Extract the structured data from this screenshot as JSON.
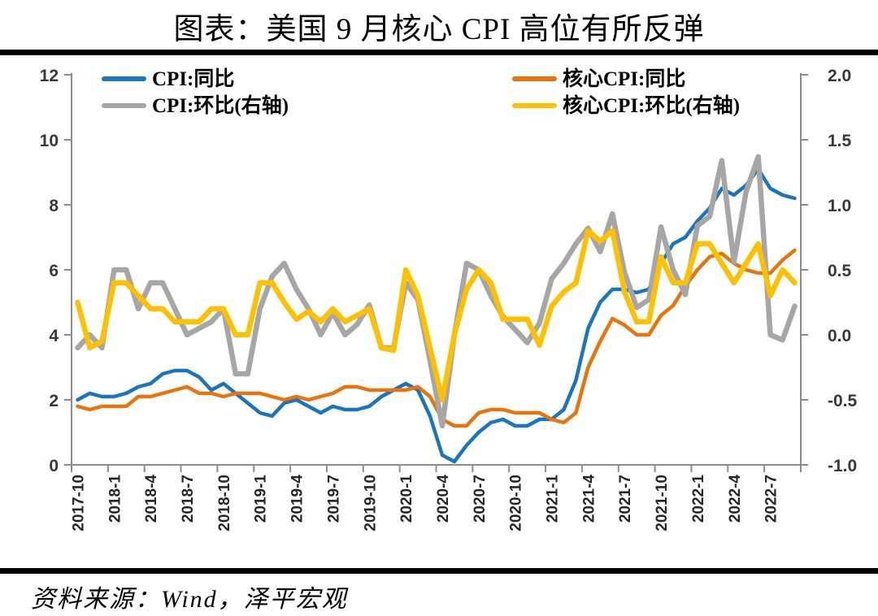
{
  "page": {
    "title": "图表：美国 9 月核心 CPI 高位有所反弹",
    "source_note": "资料来源：Wind，泽平宏观"
  },
  "legend": [
    {
      "label": "CPI:同比",
      "color": "#1B75BE"
    },
    {
      "label": "核心CPI:同比",
      "color": "#E8740D"
    },
    {
      "label": "CPI:环比(右轴)",
      "color": "#A6A6A6"
    },
    {
      "label": "核心CPI:环比(右轴)",
      "color": "#FFC000"
    }
  ],
  "chart_data": {
    "type": "line",
    "title": "图表：美国 9 月核心 CPI 高位有所反弹",
    "grid": false,
    "legend_position": "top",
    "x": [
      "2017-10",
      "2017-11",
      "2017-12",
      "2018-1",
      "2018-2",
      "2018-3",
      "2018-4",
      "2018-5",
      "2018-6",
      "2018-7",
      "2018-8",
      "2018-9",
      "2018-10",
      "2018-11",
      "2018-12",
      "2019-1",
      "2019-2",
      "2019-3",
      "2019-4",
      "2019-5",
      "2019-6",
      "2019-7",
      "2019-8",
      "2019-9",
      "2019-10",
      "2019-11",
      "2019-12",
      "2020-1",
      "2020-2",
      "2020-3",
      "2020-4",
      "2020-5",
      "2020-6",
      "2020-7",
      "2020-8",
      "2020-9",
      "2020-10",
      "2020-11",
      "2020-12",
      "2021-1",
      "2021-2",
      "2021-3",
      "2021-4",
      "2021-5",
      "2021-6",
      "2021-7",
      "2021-8",
      "2021-9",
      "2021-10",
      "2021-11",
      "2021-12",
      "2022-1",
      "2022-2",
      "2022-3",
      "2022-4",
      "2022-5",
      "2022-6",
      "2022-7",
      "2022-8",
      "2022-9"
    ],
    "x_tick_labels": [
      "2017-10",
      "2018-1",
      "2018-4",
      "2018-7",
      "2018-10",
      "2019-1",
      "2019-4",
      "2019-7",
      "2019-10",
      "2020-1",
      "2020-4",
      "2020-7",
      "2020-10",
      "2021-1",
      "2021-4",
      "2021-7",
      "2021-10",
      "2022-1",
      "2022-4",
      "2022-7"
    ],
    "left_axis": {
      "min": 0,
      "max": 12,
      "ticks": [
        0,
        2,
        4,
        6,
        8,
        10,
        12
      ]
    },
    "right_axis": {
      "min": -1,
      "max": 2,
      "ticks": [
        -1.0,
        -0.5,
        0.0,
        0.5,
        1.0,
        1.5,
        2.0
      ]
    },
    "series": [
      {
        "name": "CPI:同比",
        "slug": "cpi-yoy",
        "axis": "left",
        "color": "#1B75BE",
        "width": 4.5,
        "values": [
          2.0,
          2.2,
          2.1,
          2.1,
          2.2,
          2.4,
          2.5,
          2.8,
          2.9,
          2.9,
          2.7,
          2.3,
          2.5,
          2.2,
          1.9,
          1.6,
          1.5,
          1.9,
          2.0,
          1.8,
          1.6,
          1.8,
          1.7,
          1.7,
          1.8,
          2.1,
          2.3,
          2.5,
          2.3,
          1.5,
          0.3,
          0.1,
          0.6,
          1.0,
          1.3,
          1.4,
          1.2,
          1.2,
          1.4,
          1.4,
          1.7,
          2.6,
          4.2,
          5.0,
          5.4,
          5.4,
          5.3,
          5.4,
          6.2,
          6.8,
          7.0,
          7.5,
          7.9,
          8.5,
          8.3,
          8.6,
          9.1,
          8.5,
          8.3,
          8.2
        ]
      },
      {
        "name": "核心CPI:同比",
        "slug": "core-cpi-yoy",
        "axis": "left",
        "color": "#E8740D",
        "width": 4.5,
        "values": [
          1.8,
          1.7,
          1.8,
          1.8,
          1.8,
          2.1,
          2.1,
          2.2,
          2.3,
          2.4,
          2.2,
          2.2,
          2.1,
          2.2,
          2.2,
          2.2,
          2.1,
          2.0,
          2.1,
          2.0,
          2.1,
          2.2,
          2.4,
          2.4,
          2.3,
          2.3,
          2.3,
          2.3,
          2.4,
          2.1,
          1.4,
          1.2,
          1.2,
          1.6,
          1.7,
          1.7,
          1.6,
          1.6,
          1.6,
          1.4,
          1.3,
          1.6,
          3.0,
          3.8,
          4.5,
          4.3,
          4.0,
          4.0,
          4.6,
          4.9,
          5.5,
          6.0,
          6.4,
          6.5,
          6.2,
          6.0,
          5.9,
          5.9,
          6.3,
          6.6
        ]
      },
      {
        "name": "CPI:环比(右轴)",
        "slug": "cpi-mom-right-axis",
        "axis": "right",
        "color": "#A6A6A6",
        "width": 6.5,
        "values": [
          -0.1,
          0.0,
          -0.1,
          0.5,
          0.5,
          0.2,
          0.4,
          0.4,
          0.2,
          0.0,
          0.05,
          0.1,
          0.2,
          -0.3,
          -0.3,
          0.2,
          0.45,
          0.55,
          0.35,
          0.2,
          0.0,
          0.17,
          0.0,
          0.08,
          0.23,
          -0.1,
          -0.1,
          0.4,
          0.27,
          -0.2,
          -0.7,
          0.0,
          0.55,
          0.5,
          0.3,
          0.14,
          0.04,
          -0.06,
          0.09,
          0.43,
          0.55,
          0.7,
          0.82,
          0.64,
          0.93,
          0.48,
          0.21,
          0.27,
          0.83,
          0.5,
          0.31,
          0.84,
          0.91,
          1.34,
          0.56,
          1.1,
          1.37,
          0.0,
          -0.04,
          0.22
        ]
      },
      {
        "name": "核心CPI:环比(右轴)",
        "slug": "core-cpi-mom-right-axis",
        "axis": "right",
        "color": "#FFC000",
        "width": 6.5,
        "values": [
          0.25,
          -0.1,
          -0.05,
          0.4,
          0.4,
          0.3,
          0.2,
          0.2,
          0.1,
          0.1,
          0.1,
          0.2,
          0.2,
          0.0,
          0.0,
          0.4,
          0.4,
          0.25,
          0.12,
          0.18,
          0.1,
          0.2,
          0.1,
          0.15,
          0.2,
          -0.1,
          -0.12,
          0.5,
          0.3,
          -0.1,
          -0.5,
          0.0,
          0.35,
          0.5,
          0.4,
          0.12,
          0.12,
          0.12,
          -0.08,
          0.22,
          0.33,
          0.4,
          0.8,
          0.72,
          0.8,
          0.33,
          0.1,
          0.1,
          0.6,
          0.4,
          0.4,
          0.7,
          0.7,
          0.55,
          0.4,
          0.55,
          0.7,
          0.3,
          0.5,
          0.4
        ]
      }
    ]
  }
}
